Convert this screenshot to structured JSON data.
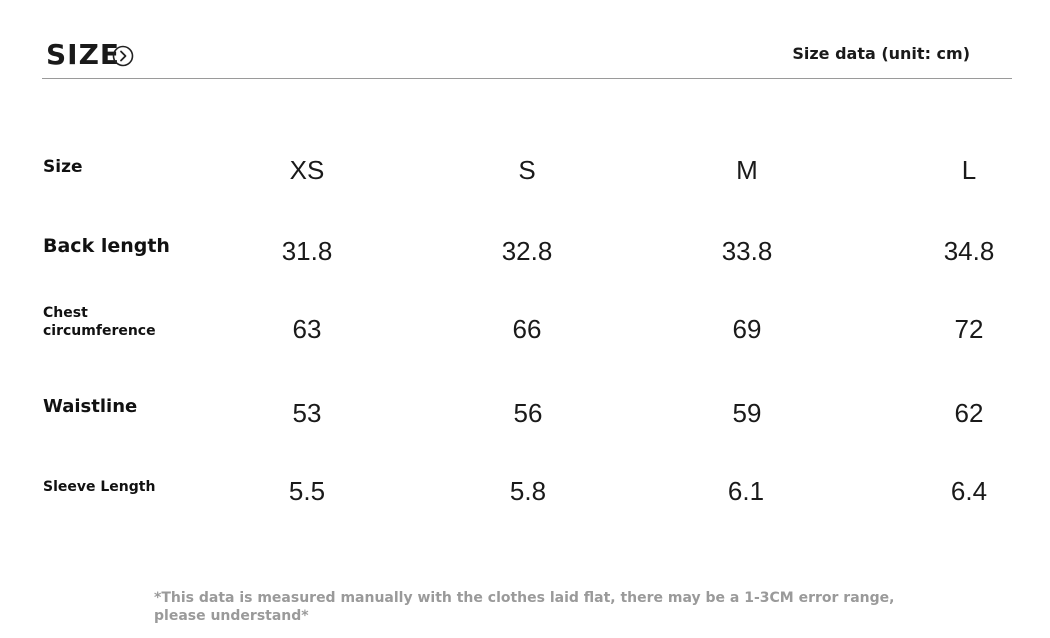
{
  "header": {
    "title": "SIZE",
    "icon": "chevron-right-circle-icon",
    "unit_note": "Size data (unit: cm)"
  },
  "table": {
    "rows": [
      {
        "label": "Size",
        "values": [
          "XS",
          "S",
          "M",
          "L"
        ]
      },
      {
        "label": "Back length",
        "values": [
          "31.8",
          "32.8",
          "33.8",
          "34.8"
        ]
      },
      {
        "label": "Chest circumference",
        "label_lines": [
          "Chest",
          "circumference"
        ],
        "values": [
          "63",
          "66",
          "69",
          "72"
        ]
      },
      {
        "label": "Waistline",
        "values": [
          "53",
          "56",
          "59",
          "62"
        ]
      },
      {
        "label": "Sleeve Length",
        "values": [
          "5.5",
          "5.8",
          "6.1",
          "6.4"
        ]
      }
    ]
  },
  "footnote": "*This data is measured manually with the clothes laid flat, there may be a 1-3CM error range, please understand*"
}
